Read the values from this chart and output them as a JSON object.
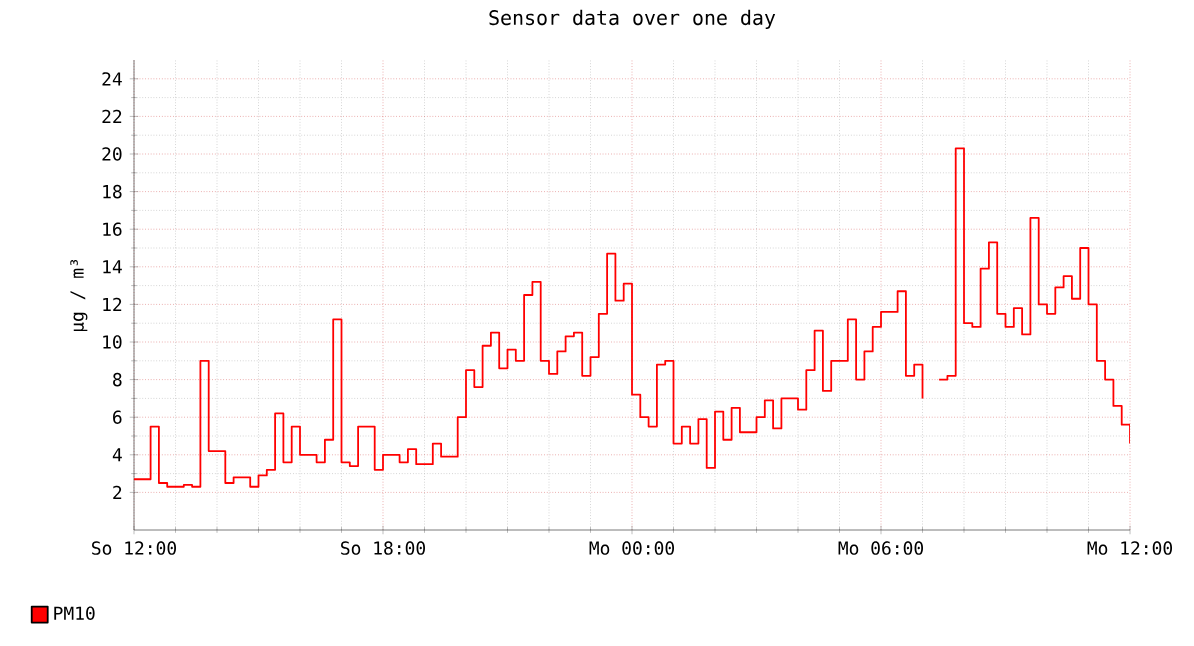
{
  "chart_data": {
    "type": "step",
    "title": "Sensor data over one day",
    "ylabel": "µg / m³",
    "categories": [
      "So 12:00",
      null,
      null,
      null,
      null,
      null,
      null,
      null,
      null,
      null,
      null,
      null,
      null,
      null,
      null,
      null,
      null,
      null,
      null,
      null,
      null,
      null,
      null,
      null,
      null,
      null,
      null,
      null,
      null,
      null,
      "So 18:00",
      null,
      null,
      null,
      null,
      null,
      null,
      null,
      null,
      null,
      null,
      null,
      null,
      null,
      null,
      null,
      null,
      null,
      null,
      null,
      null,
      null,
      null,
      null,
      null,
      null,
      null,
      null,
      null,
      null,
      "Mo 00:00",
      null,
      null,
      null,
      null,
      null,
      null,
      null,
      null,
      null,
      null,
      null,
      null,
      null,
      null,
      null,
      null,
      null,
      null,
      null,
      null,
      null,
      null,
      null,
      null,
      null,
      null,
      null,
      null,
      null,
      "Mo 06:00",
      null,
      null,
      null,
      null,
      null,
      null,
      null,
      null,
      null,
      null,
      null,
      null,
      null,
      null,
      null,
      null,
      null,
      null,
      null,
      null,
      null,
      null,
      null,
      null,
      null,
      null,
      null,
      null,
      null,
      "Mo 12:00"
    ],
    "series": [
      {
        "name": "PM10",
        "color": "#ff0000",
        "values": [
          2.7,
          2.7,
          5.5,
          2.5,
          2.3,
          2.3,
          2.4,
          2.3,
          9.0,
          4.2,
          4.2,
          2.5,
          2.8,
          2.8,
          2.3,
          2.9,
          3.2,
          6.2,
          3.6,
          5.5,
          4.0,
          4.0,
          3.6,
          4.8,
          11.2,
          3.6,
          3.4,
          5.5,
          5.5,
          3.2,
          4.0,
          4.0,
          3.6,
          4.3,
          3.5,
          3.5,
          4.6,
          3.9,
          3.9,
          6.0,
          8.5,
          7.6,
          9.8,
          10.5,
          8.6,
          9.6,
          9.0,
          12.5,
          13.2,
          9.0,
          8.3,
          9.5,
          10.3,
          10.5,
          8.2,
          9.2,
          11.5,
          14.7,
          12.2,
          13.1,
          7.2,
          6.0,
          5.5,
          8.8,
          9.0,
          4.6,
          5.5,
          4.6,
          5.9,
          3.3,
          6.3,
          4.8,
          6.5,
          5.2,
          5.2,
          6.0,
          6.9,
          5.4,
          7.0,
          7.0,
          6.4,
          8.5,
          10.6,
          7.4,
          9.0,
          9.0,
          11.2,
          8.0,
          9.5,
          10.8,
          11.6,
          11.6,
          12.7,
          8.2,
          8.8,
          7.0,
          null,
          8.0,
          8.2,
          20.3,
          11.0,
          10.8,
          13.9,
          15.3,
          11.5,
          10.8,
          11.8,
          10.4,
          16.6,
          12.0,
          11.5,
          12.9,
          13.5,
          12.3,
          15.0,
          12.0,
          9.0,
          8.0,
          6.6,
          5.6,
          4.6
        ]
      }
    ],
    "ylim": [
      0,
      25
    ],
    "yticks": [
      2,
      4,
      6,
      8,
      10,
      12,
      14,
      16,
      18,
      20,
      22,
      24
    ],
    "grid": true,
    "legend": "bottom left",
    "marker": "none",
    "line_style": "solid"
  }
}
